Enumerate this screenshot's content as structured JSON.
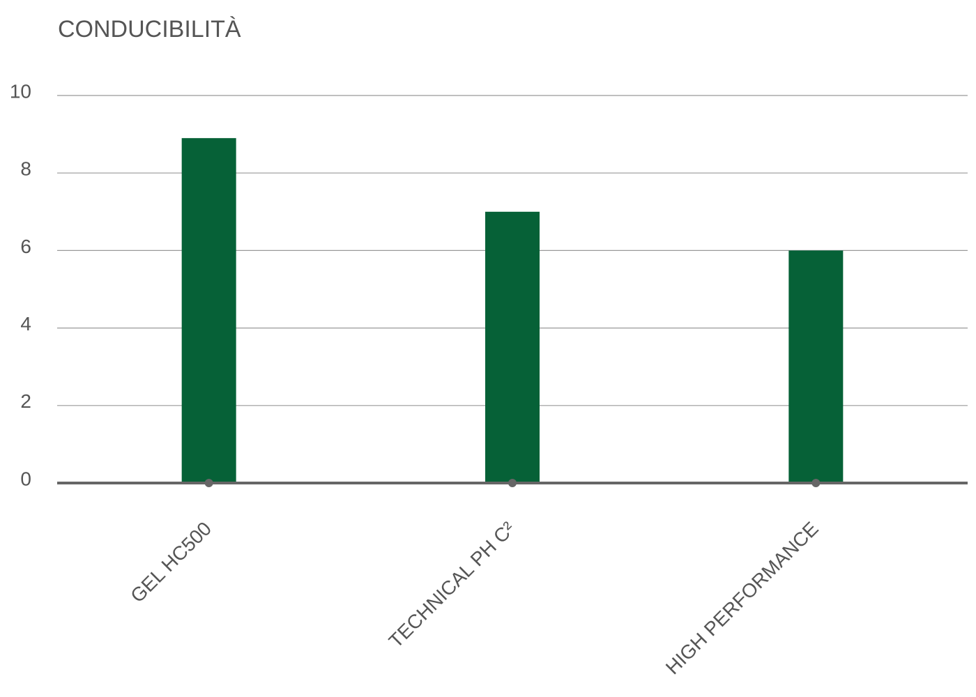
{
  "chart_data": {
    "type": "bar",
    "title": "CONDUCIBILITÀ",
    "categories": [
      "GEL HC500",
      "TECHNICAL PH C²",
      "HIGH PERFORMANCE"
    ],
    "values": [
      8.9,
      7,
      6
    ],
    "color": "#066137",
    "ylim": [
      0,
      10
    ],
    "yticks": [
      0,
      2,
      4,
      6,
      8,
      10
    ],
    "grid": true
  }
}
